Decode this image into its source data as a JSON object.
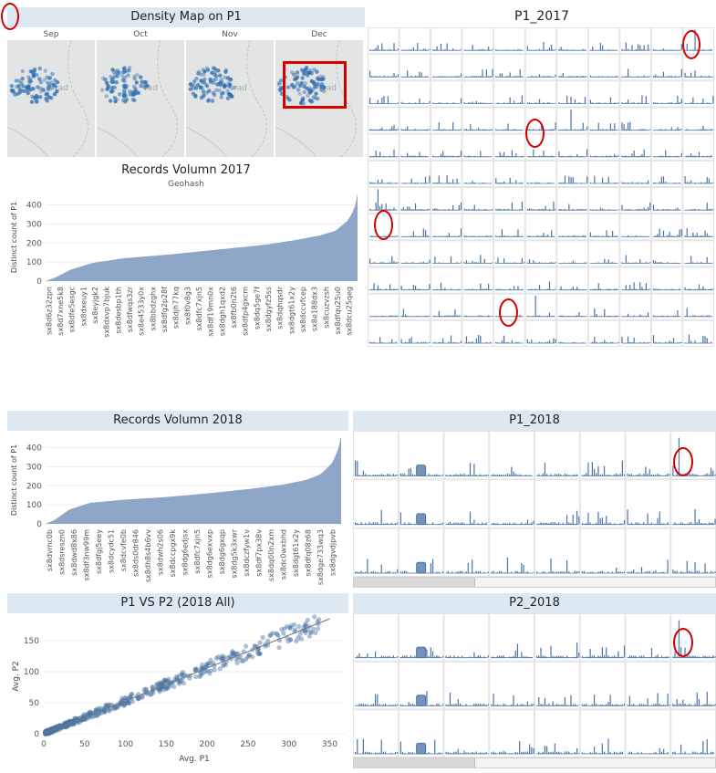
{
  "density": {
    "title": "Density Map on P1",
    "months": [
      "Sep",
      "Oct",
      "Nov",
      "Dec"
    ],
    "map_label": "rad",
    "dot_color": "#2f6fb0"
  },
  "records2017": {
    "title": "Records Volumn 2017",
    "subtitle": "Geohash",
    "ylabel": "Distinct count of P1",
    "yticks": [
      0,
      100,
      200,
      300,
      400
    ],
    "labels": [
      "sx8d6z32zpn",
      "sx8d7xne5k8",
      "sx8dfe5esgc",
      "sx8dxeuy1",
      "sx8eyjgk2",
      "sx8dxvp7bjuk",
      "sx8desbp1th",
      "sx8dfwqs3zr",
      "sx8e4533y0x",
      "sx8bbdzghx",
      "sx8dfg2p28f",
      "sx8djh77kq",
      "sx8f0v8g3",
      "sx8dfc7xjn5",
      "sx8df19mn0x",
      "sx8dgh1qxd2",
      "sx8fb0n2t6",
      "sx8dfp4gxcm",
      "sx8dq5ge7f",
      "sx8dgyfz5ss",
      "sx8dqhqsdr",
      "sx8dgt61x2y",
      "sx8dccvfcep",
      "sx8e188dx3",
      "sx8cuzvzsh",
      "sx8dfqu25u0",
      "sx8dcu25qeg"
    ]
  },
  "p1_2017": {
    "title": "P1_2017",
    "rows": 12,
    "cols": 11
  },
  "records2018": {
    "title": "Records Volumn 2018",
    "ylabel": "Distinct count of P1",
    "yticks": [
      0,
      100,
      200,
      300,
      400
    ],
    "labels": [
      "sx8dvmc0b",
      "sx8dsreszn0",
      "sx8dwd8x86",
      "sx8df3nw99m",
      "sx8dfgj5eey",
      "sx8dcydc51",
      "sx8dcvfe0b",
      "sx8ds0dr846",
      "sx8dh8s4b6vv",
      "sx8dwh2s06",
      "sx8dccpgx9k",
      "sx8dg6edjsx",
      "sx8dfc7xjn5",
      "sx8dg6exvxp",
      "sx8dg6gxqp",
      "sx8dg5k3xwr",
      "sx8dczfyw1v",
      "sx8df7px38v",
      "sx8dq00n2xm",
      "sx8dc0wxbhd",
      "sx8dgt61x2y",
      "sx8dfq08z68",
      "sx8dge733wq3",
      "sx8dgvdjpvb"
    ]
  },
  "p1_2018": {
    "title": "P1_2018",
    "rows": 3,
    "cols": 8
  },
  "scatter": {
    "title": "P1 VS P2 (2018 All)",
    "xlabel": "Avg. P1",
    "ylabel": "Avg. P2",
    "xticks": [
      0,
      50,
      100,
      150,
      200,
      250,
      300,
      350
    ],
    "yticks": [
      0,
      50,
      100,
      150
    ]
  },
  "p2_2018": {
    "title": "P2_2018",
    "rows": 3,
    "cols": 8
  },
  "colors": {
    "bar": "#8ea6c7",
    "spark": "#4a74a5",
    "header": "#dde9f2",
    "mark": "#d40000"
  },
  "chart_data": [
    {
      "type": "area",
      "title": "Records Volumn 2017",
      "xlabel": "Geohash",
      "ylabel": "Distinct count of P1",
      "ylim": [
        0,
        460
      ],
      "series_profile": [
        [
          0,
          0
        ],
        [
          0.03,
          18
        ],
        [
          0.08,
          60
        ],
        [
          0.15,
          95
        ],
        [
          0.25,
          120
        ],
        [
          0.4,
          140
        ],
        [
          0.55,
          165
        ],
        [
          0.7,
          190
        ],
        [
          0.8,
          215
        ],
        [
          0.88,
          240
        ],
        [
          0.93,
          265
        ],
        [
          0.97,
          320
        ],
        [
          0.99,
          380
        ],
        [
          1.0,
          460
        ]
      ]
    },
    {
      "type": "area",
      "title": "Records Volumn 2018",
      "ylabel": "Distinct count of P1",
      "ylim": [
        0,
        460
      ],
      "series_profile": [
        [
          0,
          0
        ],
        [
          0.03,
          20
        ],
        [
          0.08,
          75
        ],
        [
          0.15,
          110
        ],
        [
          0.25,
          125
        ],
        [
          0.4,
          140
        ],
        [
          0.55,
          160
        ],
        [
          0.7,
          185
        ],
        [
          0.8,
          205
        ],
        [
          0.88,
          230
        ],
        [
          0.93,
          260
        ],
        [
          0.97,
          320
        ],
        [
          0.99,
          390
        ],
        [
          1.0,
          460
        ]
      ]
    },
    {
      "type": "scatter",
      "title": "P1 VS P2 (2018 All)",
      "xlabel": "Avg. P1",
      "ylabel": "Avg. P2",
      "xlim": [
        0,
        350
      ],
      "ylim": [
        0,
        185
      ],
      "trend": [
        [
          0,
          0
        ],
        [
          350,
          185
        ]
      ]
    }
  ]
}
